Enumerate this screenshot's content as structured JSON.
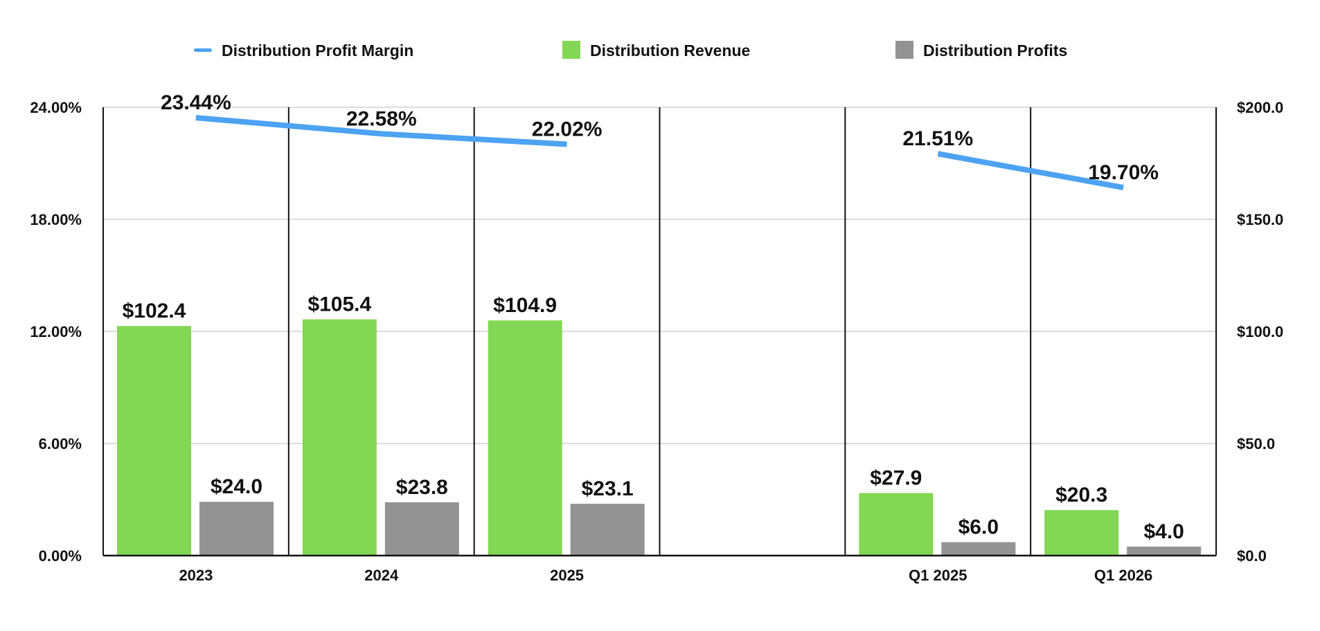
{
  "chart_data": {
    "type": "bar",
    "categories": [
      "2023",
      "2024",
      "2025",
      "",
      "Q1 2025",
      "Q1 2026"
    ],
    "series": [
      {
        "name": "Distribution Profit Margin",
        "kind": "line",
        "axis": "left",
        "color": "#4DA3F2",
        "values": [
          23.44,
          22.58,
          22.02,
          null,
          21.51,
          19.7
        ],
        "labels": [
          "23.44%",
          "22.58%",
          "22.02%",
          "",
          "21.51%",
          "19.70%"
        ]
      },
      {
        "name": "Distribution Revenue",
        "kind": "bar",
        "axis": "right",
        "color": "#84D754",
        "values": [
          102.4,
          105.4,
          104.9,
          null,
          27.9,
          20.3
        ],
        "labels": [
          "$102.4",
          "$105.4",
          "$104.9",
          "",
          "$27.9",
          "$20.3"
        ]
      },
      {
        "name": "Distribution Profits",
        "kind": "bar",
        "axis": "right",
        "color": "#939393",
        "values": [
          24.0,
          23.8,
          23.1,
          null,
          6.0,
          4.0
        ],
        "labels": [
          "$24.0",
          "$23.8",
          "$23.1",
          "",
          "$6.0",
          "$4.0"
        ]
      }
    ],
    "left_axis": {
      "ylim": [
        0,
        24
      ],
      "ticks": [
        "0.00%",
        "6.00%",
        "12.00%",
        "18.00%",
        "24.00%"
      ]
    },
    "right_axis": {
      "ylim": [
        0,
        200
      ],
      "ticks": [
        "$0.0",
        "$50.0",
        "$100.0",
        "$150.0",
        "$200.0"
      ]
    },
    "grid": true,
    "legend_position": "top"
  }
}
